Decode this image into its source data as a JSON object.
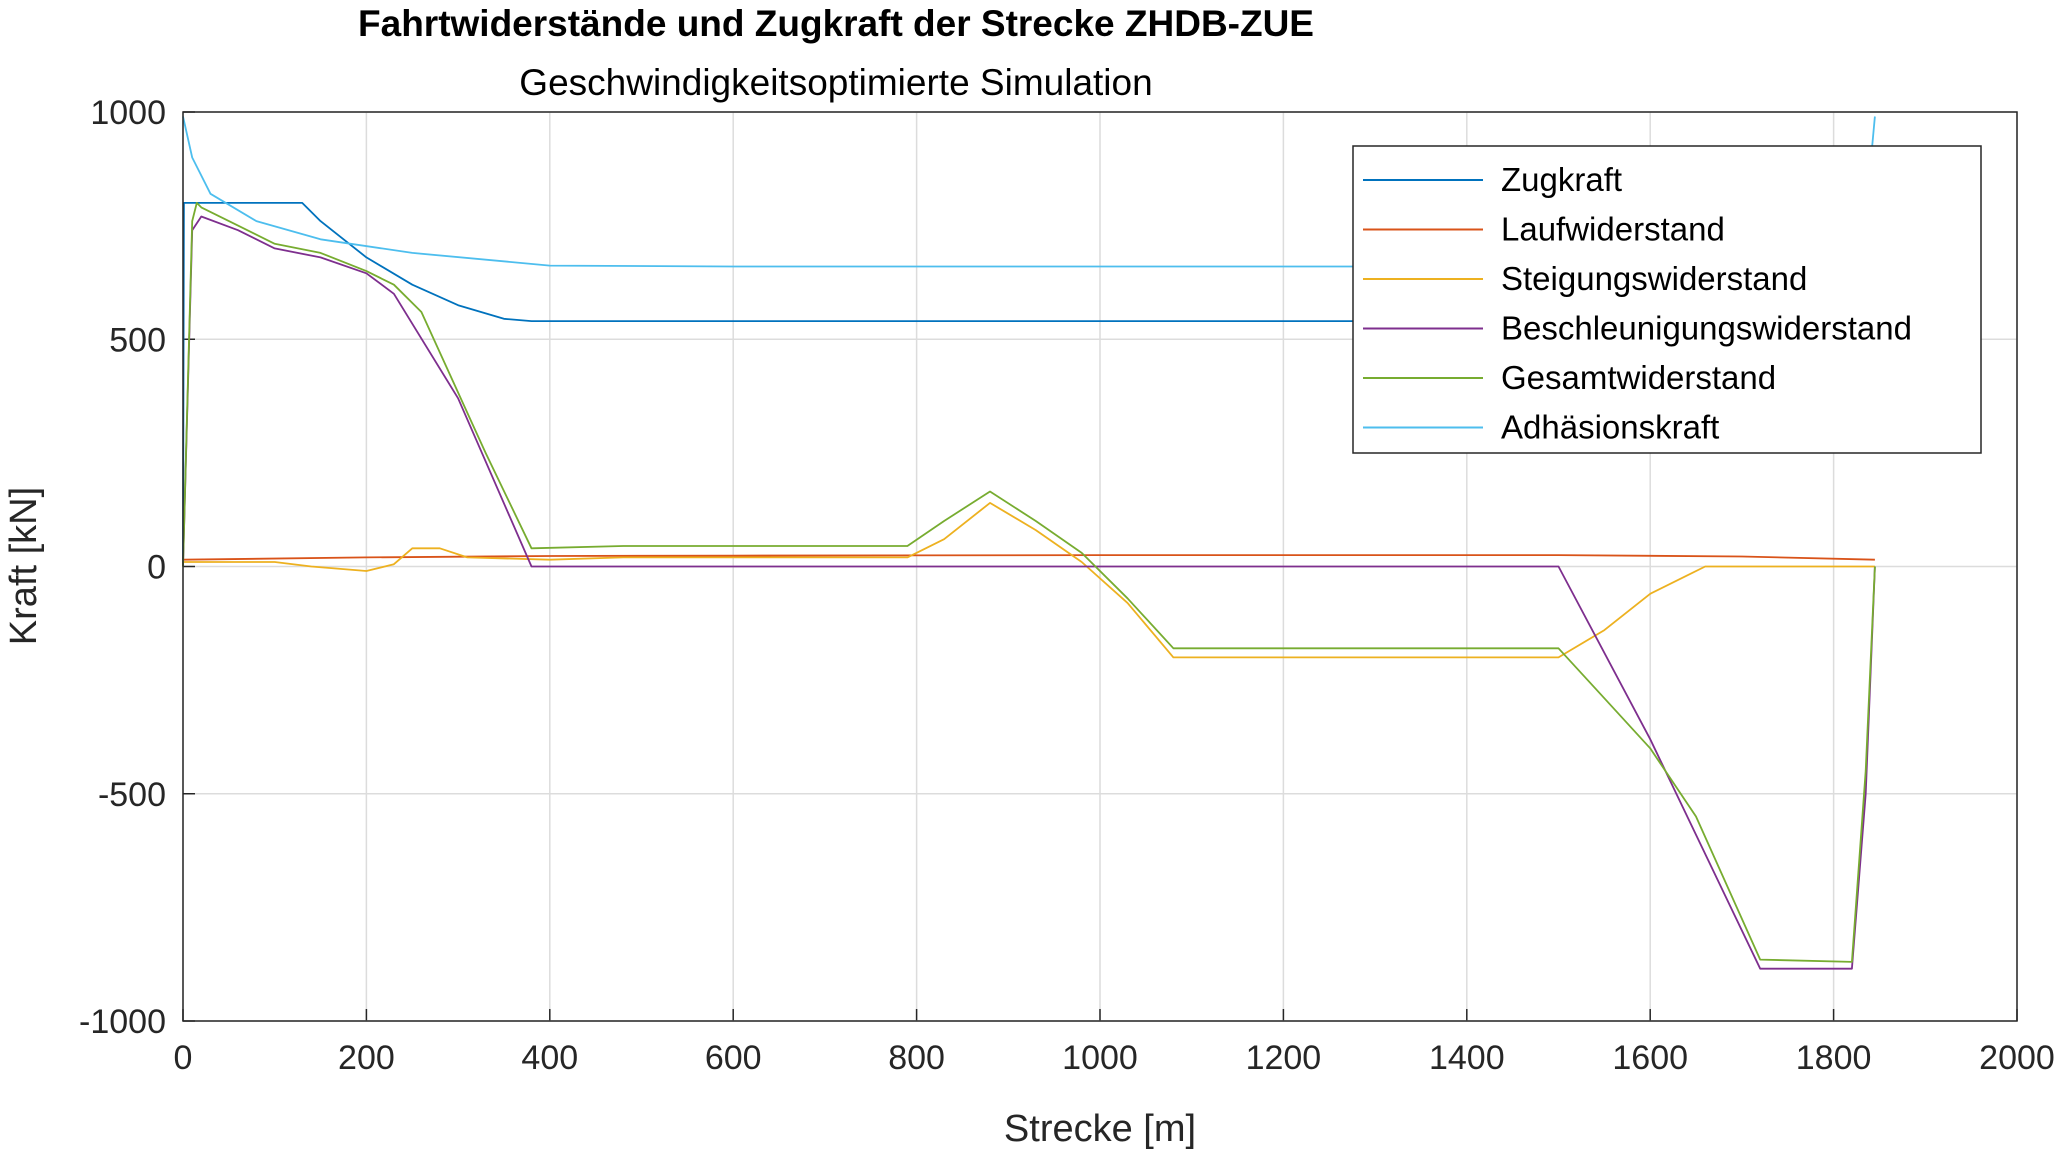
{
  "chart_data": {
    "type": "line",
    "title": "Fahrtwiderstände und Zugkraft der Strecke ZHDB-ZUE",
    "subtitle": "Geschwindigkeitsoptimierte Simulation",
    "xlabel": "Strecke [m]",
    "ylabel": "Kraft [kN]",
    "xlim": [
      0,
      2000
    ],
    "ylim": [
      -1000,
      1000
    ],
    "xticks": [
      "0",
      "200",
      "400",
      "600",
      "800",
      "1000",
      "1200",
      "1400",
      "1600",
      "1800",
      "2000"
    ],
    "yticks": [
      "1000",
      "500",
      "0",
      "-500",
      "-1000"
    ],
    "grid": true,
    "legend_position": "top-right",
    "series": [
      {
        "name": "Zugkraft",
        "color": "#0072BD",
        "points": [
          [
            0,
            0
          ],
          [
            1,
            800
          ],
          [
            130,
            800
          ],
          [
            150,
            760
          ],
          [
            200,
            680
          ],
          [
            250,
            620
          ],
          [
            300,
            575
          ],
          [
            350,
            545
          ],
          [
            380,
            540
          ],
          [
            1850,
            540
          ]
        ]
      },
      {
        "name": "Laufwiderstand",
        "color": "#D95319",
        "points": [
          [
            0,
            15
          ],
          [
            200,
            20
          ],
          [
            400,
            23
          ],
          [
            600,
            24
          ],
          [
            1000,
            25
          ],
          [
            1500,
            25
          ],
          [
            1700,
            22
          ],
          [
            1845,
            15
          ]
        ]
      },
      {
        "name": "Steigungswiderstand",
        "color": "#EDB120",
        "points": [
          [
            0,
            10
          ],
          [
            100,
            10
          ],
          [
            140,
            0
          ],
          [
            200,
            -10
          ],
          [
            230,
            5
          ],
          [
            250,
            40
          ],
          [
            280,
            40
          ],
          [
            310,
            20
          ],
          [
            400,
            15
          ],
          [
            480,
            20
          ],
          [
            790,
            20
          ],
          [
            830,
            60
          ],
          [
            880,
            140
          ],
          [
            930,
            80
          ],
          [
            980,
            10
          ],
          [
            1030,
            -80
          ],
          [
            1080,
            -200
          ],
          [
            1500,
            -200
          ],
          [
            1550,
            -140
          ],
          [
            1600,
            -60
          ],
          [
            1640,
            -20
          ],
          [
            1660,
            0
          ],
          [
            1845,
            0
          ]
        ]
      },
      {
        "name": "Beschleunigungswiderstand",
        "color": "#7E2F8E",
        "points": [
          [
            0,
            0
          ],
          [
            10,
            740
          ],
          [
            20,
            770
          ],
          [
            60,
            740
          ],
          [
            100,
            700
          ],
          [
            150,
            680
          ],
          [
            200,
            645
          ],
          [
            230,
            600
          ],
          [
            300,
            370
          ],
          [
            380,
            0
          ],
          [
            1500,
            0
          ],
          [
            1600,
            -380
          ],
          [
            1720,
            -885
          ],
          [
            1820,
            -885
          ],
          [
            1835,
            -500
          ],
          [
            1845,
            0
          ]
        ]
      },
      {
        "name": "Gesamtwiderstand",
        "color": "#77AC30",
        "points": [
          [
            0,
            0
          ],
          [
            10,
            760
          ],
          [
            15,
            800
          ],
          [
            20,
            790
          ],
          [
            60,
            750
          ],
          [
            100,
            710
          ],
          [
            150,
            690
          ],
          [
            200,
            650
          ],
          [
            230,
            620
          ],
          [
            260,
            560
          ],
          [
            330,
            250
          ],
          [
            380,
            40
          ],
          [
            480,
            45
          ],
          [
            790,
            45
          ],
          [
            830,
            100
          ],
          [
            880,
            165
          ],
          [
            930,
            100
          ],
          [
            980,
            30
          ],
          [
            1030,
            -70
          ],
          [
            1080,
            -180
          ],
          [
            1500,
            -180
          ],
          [
            1550,
            -290
          ],
          [
            1600,
            -400
          ],
          [
            1650,
            -550
          ],
          [
            1720,
            -865
          ],
          [
            1820,
            -870
          ],
          [
            1835,
            -450
          ],
          [
            1845,
            0
          ]
        ]
      },
      {
        "name": "Adhäsionskraft",
        "color": "#4DBEEE",
        "points": [
          [
            0,
            990
          ],
          [
            10,
            900
          ],
          [
            30,
            820
          ],
          [
            80,
            760
          ],
          [
            150,
            720
          ],
          [
            250,
            690
          ],
          [
            400,
            662
          ],
          [
            600,
            660
          ],
          [
            1830,
            660
          ],
          [
            1840,
            880
          ],
          [
            1845,
            990
          ]
        ]
      }
    ]
  }
}
